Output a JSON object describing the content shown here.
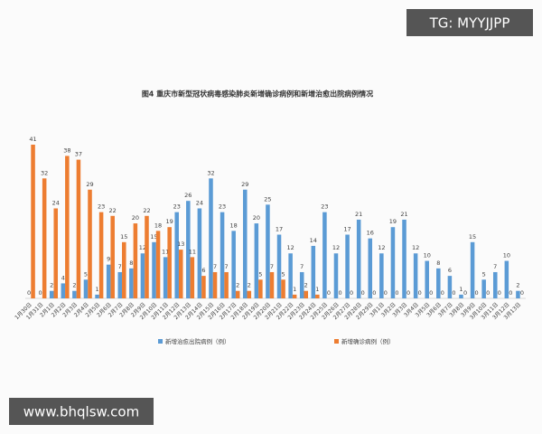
{
  "chart_data": {
    "type": "bar",
    "title": "图4  重庆市新型冠状病毒感染肺炎新增确诊病例和新增治愈出院病例情况",
    "categories": [
      "1月30日",
      "1月31日",
      "2月1日",
      "2月2日",
      "2月3日",
      "2月4日",
      "2月5日",
      "2月6日",
      "2月7日",
      "2月8日",
      "2月9日",
      "2月10日",
      "2月11日",
      "2月12日",
      "2月13日",
      "2月14日",
      "2月15日",
      "2月16日",
      "2月17日",
      "2月18日",
      "2月19日",
      "2月20日",
      "2月21日",
      "2月22日",
      "2月23日",
      "2月24日",
      "2月25日",
      "2月26日",
      "2月27日",
      "2月28日",
      "2月29日",
      "3月1日",
      "3月2日",
      "3月3日",
      "3月4日",
      "3月5日",
      "3月6日",
      "3月7日",
      "3月8日",
      "3月9日",
      "3月10日",
      "3月11日",
      "3月12日",
      "3月13日"
    ],
    "series": [
      {
        "name": "新增治愈出院病例（例）",
        "color": "#5b9bd5",
        "values": [
          0,
          0,
          2,
          4,
          2,
          5,
          1,
          9,
          7,
          8,
          12,
          15,
          11,
          23,
          26,
          24,
          32,
          23,
          18,
          29,
          20,
          25,
          17,
          12,
          7,
          14,
          23,
          12,
          17,
          21,
          16,
          12,
          19,
          21,
          12,
          10,
          8,
          6,
          1,
          15,
          5,
          7,
          10,
          2
        ]
      },
      {
        "name": "新增确诊病例（例）",
        "color": "#ed7d31",
        "values": [
          41,
          32,
          24,
          38,
          37,
          29,
          23,
          22,
          15,
          20,
          22,
          18,
          19,
          13,
          11,
          6,
          7,
          7,
          2,
          2,
          5,
          7,
          5,
          1,
          2,
          1,
          0,
          0,
          0,
          0,
          0,
          0,
          0,
          0,
          0,
          0,
          0,
          0,
          0,
          0,
          0,
          0,
          0,
          0
        ]
      }
    ]
  },
  "watermarks": [
    "TG: MYYJJPP",
    "www.bhqlsw.com"
  ]
}
